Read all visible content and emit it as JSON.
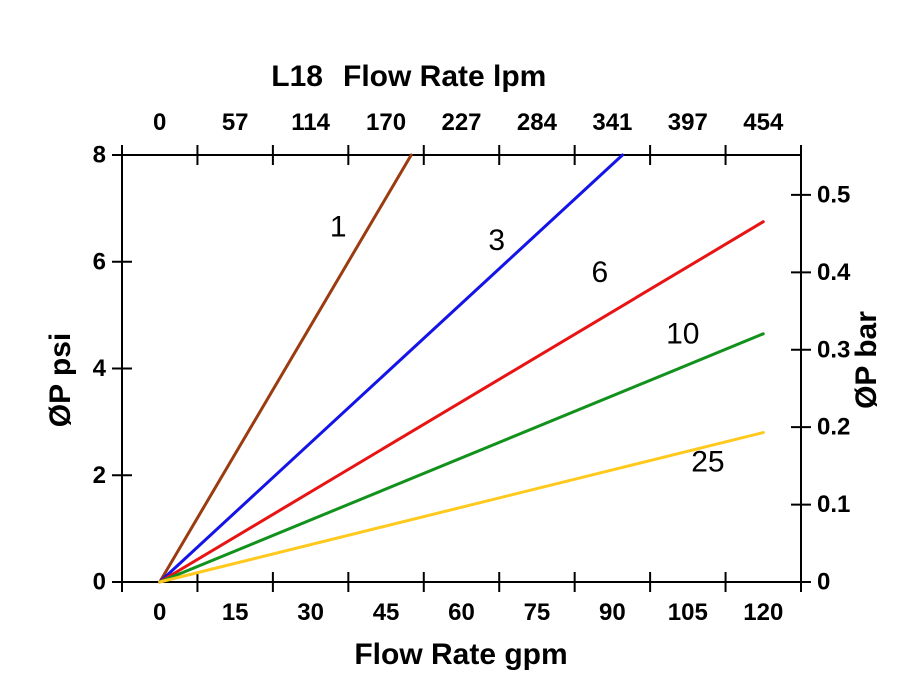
{
  "chart_data": {
    "type": "line",
    "model": "L18",
    "title": "L18 Flow Rate lpm",
    "background_color": "#ffffff",
    "frame_color": "#000000",
    "legend_position": "inline-labels",
    "grid": false,
    "top_axis": {
      "label": "Flow Rate lpm",
      "ticks": [
        "0",
        "57",
        "114",
        "170",
        "227",
        "284",
        "341",
        "397",
        "454"
      ]
    },
    "bottom_axis": {
      "label": "Flow Rate gpm",
      "ticks": [
        "0",
        "15",
        "30",
        "45",
        "60",
        "75",
        "90",
        "105",
        "120"
      ],
      "range_gpm": [
        0,
        120
      ]
    },
    "left_axis": {
      "label": "ØP psi",
      "ticks": [
        "0",
        "2",
        "4",
        "6",
        "8"
      ],
      "range_psi": [
        0,
        8
      ]
    },
    "right_axis": {
      "label": "ØP bar",
      "ticks": [
        "0",
        "0.1",
        "0.2",
        "0.3",
        "0.4",
        "0.5"
      ],
      "psi_per_bar": 14.5038
    },
    "series": [
      {
        "name": "1",
        "color": "#9A3B10",
        "points_gpm_psi": [
          [
            0,
            0
          ],
          [
            50,
            8
          ]
        ],
        "label_pos_gpm_psi": [
          35.5,
          6.65
        ],
        "note": "exits top of chart at ~50 gpm / 8 psi"
      },
      {
        "name": "3",
        "color": "#1414E8",
        "points_gpm_psi": [
          [
            0,
            0
          ],
          [
            92,
            8
          ]
        ],
        "label_pos_gpm_psi": [
          67,
          6.4
        ],
        "note": "exits top of chart at ~92 gpm / 8 psi"
      },
      {
        "name": "6",
        "color": "#E81414",
        "points_gpm_psi": [
          [
            0,
            0
          ],
          [
            120,
            6.75
          ]
        ],
        "label_pos_gpm_psi": [
          87.5,
          5.8
        ]
      },
      {
        "name": "10",
        "color": "#12921C",
        "points_gpm_psi": [
          [
            0,
            0
          ],
          [
            120,
            4.65
          ]
        ],
        "label_pos_gpm_psi": [
          104,
          4.65
        ]
      },
      {
        "name": "25",
        "color": "#FFC91E",
        "points_gpm_psi": [
          [
            0,
            0
          ],
          [
            120,
            2.8
          ]
        ],
        "label_pos_gpm_psi": [
          109,
          2.25
        ]
      }
    ]
  }
}
